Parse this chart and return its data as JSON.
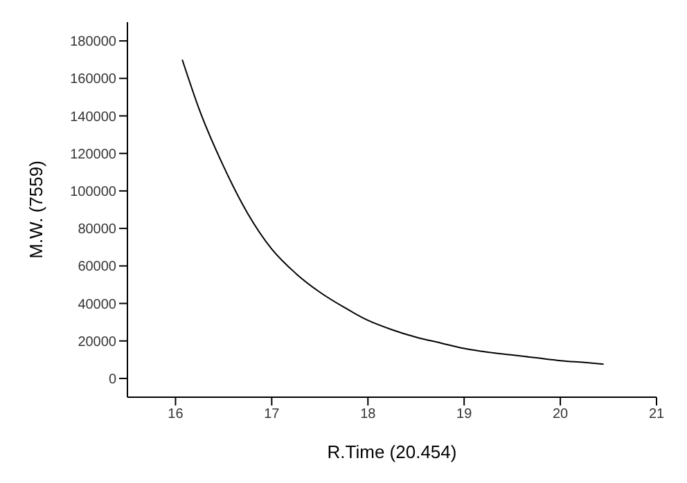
{
  "chart_data": {
    "type": "line",
    "xlabel": "R.Time (20.454)",
    "ylabel": "M.W. (7559)",
    "x": [
      16.07,
      16.25,
      16.5,
      16.75,
      17,
      17.25,
      17.5,
      17.75,
      18,
      18.25,
      18.5,
      18.75,
      19,
      19.25,
      19.5,
      19.75,
      20,
      20.25,
      20.45
    ],
    "series": [
      {
        "color": "#000000",
        "values": [
          170000,
          143000,
          113000,
          88000,
          69000,
          56000,
          46000,
          38000,
          31000,
          26000,
          22000,
          19000,
          16000,
          14000,
          12500,
          11000,
          9500,
          8500,
          7600
        ]
      }
    ],
    "xlim": [
      15.5,
      21
    ],
    "xticks": [
      16,
      17,
      18,
      19,
      20,
      21
    ],
    "ylim": [
      -10000,
      190000
    ],
    "yticks": [
      0,
      20000,
      40000,
      60000,
      80000,
      100000,
      120000,
      140000,
      160000,
      180000
    ],
    "grid": false,
    "legend": false,
    "marker": "none",
    "line_style": "solid"
  }
}
